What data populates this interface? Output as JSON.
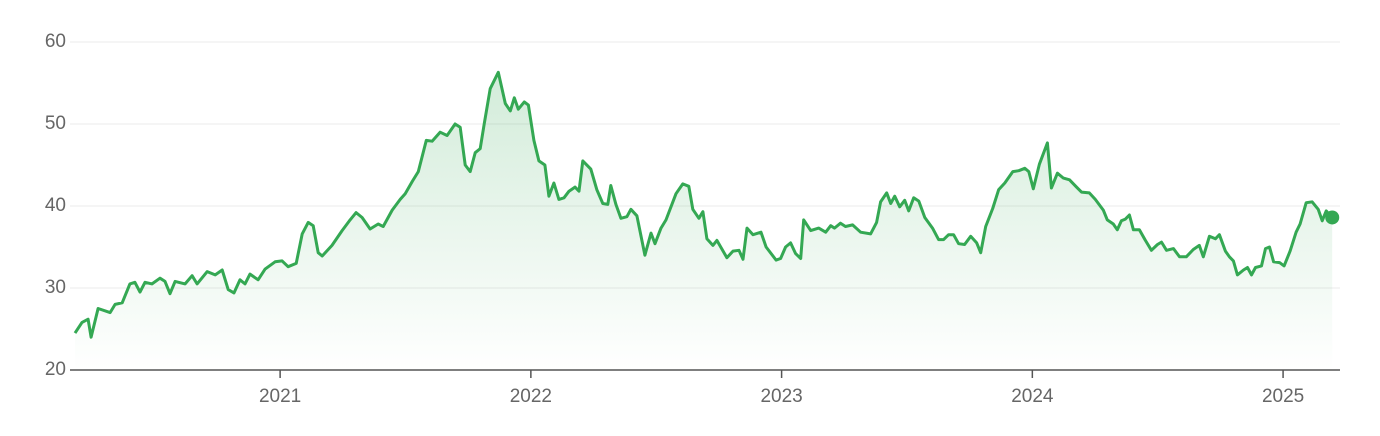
{
  "chart_data": {
    "type": "line",
    "color": "#34a853",
    "grid": true,
    "area": true,
    "last_point_marker": true,
    "xlim": [
      2020.162,
      2025.227
    ],
    "xticks": [
      2021,
      2022,
      2023,
      2024,
      2025
    ],
    "ylim": [
      20,
      60
    ],
    "yticks": [
      20,
      30,
      40,
      50,
      60
    ],
    "x": [
      2020.182,
      2020.21,
      2020.234,
      2020.246,
      2020.274,
      2020.322,
      2020.342,
      2020.37,
      2020.401,
      2020.421,
      2020.441,
      2020.461,
      2020.489,
      2020.521,
      2020.541,
      2020.561,
      2020.581,
      2020.621,
      2020.649,
      2020.669,
      2020.709,
      2020.741,
      2020.769,
      2020.793,
      2020.816,
      2020.84,
      2020.86,
      2020.88,
      2020.912,
      2020.94,
      2020.98,
      2021.008,
      2021.032,
      2021.064,
      2021.088,
      2021.112,
      2021.132,
      2021.152,
      2021.168,
      2021.207,
      2021.247,
      2021.279,
      2021.303,
      2021.327,
      2021.359,
      2021.391,
      2021.411,
      2021.447,
      2021.479,
      2021.499,
      2021.527,
      2021.551,
      2021.583,
      2021.606,
      2021.638,
      2021.666,
      2021.698,
      2021.718,
      2021.738,
      2021.758,
      2021.778,
      2021.798,
      2021.814,
      2021.838,
      2021.87,
      2021.898,
      2021.918,
      2021.934,
      2021.95,
      2021.974,
      2021.99,
      2022.012,
      2022.032,
      2022.056,
      2022.072,
      2022.092,
      2022.112,
      2022.132,
      2022.152,
      2022.176,
      2022.192,
      2022.207,
      2022.239,
      2022.263,
      2022.287,
      2022.307,
      2022.319,
      2022.339,
      2022.359,
      2022.383,
      2022.399,
      2022.423,
      2022.455,
      2022.479,
      2022.495,
      2022.519,
      2022.539,
      2022.579,
      2022.606,
      2022.63,
      2022.646,
      2022.67,
      2022.686,
      2022.702,
      2022.726,
      2022.742,
      2022.782,
      2022.806,
      2022.83,
      2022.846,
      2022.862,
      2022.886,
      2022.918,
      2022.938,
      2022.978,
      2022.996,
      2023.016,
      2023.036,
      2023.056,
      2023.076,
      2023.088,
      2023.116,
      2023.148,
      2023.176,
      2023.196,
      2023.211,
      2023.235,
      2023.255,
      2023.283,
      2023.315,
      2023.355,
      2023.379,
      2023.395,
      2023.419,
      2023.435,
      2023.451,
      2023.471,
      2023.491,
      2023.507,
      2023.527,
      2023.547,
      2023.571,
      2023.602,
      2023.626,
      2023.646,
      2023.666,
      2023.686,
      2023.706,
      2023.73,
      2023.754,
      2023.778,
      2023.794,
      2023.814,
      2023.842,
      2023.866,
      2023.89,
      2023.922,
      2023.946,
      2023.97,
      2023.986,
      2024.004,
      2024.028,
      2024.06,
      2024.076,
      2024.1,
      2024.124,
      2024.148,
      2024.176,
      2024.196,
      2024.227,
      2024.251,
      2024.283,
      2024.299,
      2024.323,
      2024.339,
      2024.355,
      2024.371,
      2024.387,
      2024.403,
      2024.427,
      2024.451,
      2024.475,
      2024.499,
      2024.515,
      2024.535,
      2024.563,
      2024.587,
      2024.614,
      2024.642,
      2024.666,
      2024.682,
      2024.706,
      2024.73,
      2024.746,
      2024.77,
      2024.786,
      2024.802,
      2024.818,
      2024.842,
      2024.858,
      2024.874,
      2024.89,
      2024.914,
      2024.93,
      2024.946,
      2024.962,
      2024.986,
      2025.004,
      2025.028,
      2025.052,
      2025.068,
      2025.092,
      2025.116,
      2025.14,
      2025.156,
      2025.172,
      2025.196
    ],
    "values": [
      24.5,
      25.8,
      26.2,
      24,
      27.5,
      27,
      28,
      28.2,
      30.5,
      30.7,
      29.5,
      30.7,
      30.5,
      31.2,
      30.8,
      29.3,
      30.8,
      30.5,
      31.5,
      30.5,
      32,
      31.6,
      32.2,
      29.8,
      29.4,
      31,
      30.5,
      31.7,
      31,
      32.3,
      33.2,
      33.3,
      32.6,
      33,
      36.6,
      38,
      37.6,
      34.3,
      33.9,
      35.2,
      37,
      38.3,
      39.2,
      38.6,
      37.2,
      37.8,
      37.5,
      39.5,
      40.8,
      41.5,
      43,
      44.2,
      48,
      47.9,
      49,
      48.6,
      50,
      49.6,
      45,
      44.2,
      46.5,
      47,
      50,
      54.3,
      56.3,
      52.5,
      51.6,
      53.2,
      51.8,
      52.7,
      52.3,
      48,
      45.5,
      45,
      41.2,
      42.8,
      40.8,
      41,
      41.8,
      42.3,
      41.8,
      45.5,
      44.5,
      42,
      40.3,
      40.2,
      42.5,
      40.2,
      38.5,
      38.7,
      39.6,
      38.8,
      34,
      36.7,
      35.4,
      37.3,
      38.3,
      41.5,
      42.7,
      42.4,
      39.6,
      38.5,
      39.3,
      36,
      35.2,
      35.8,
      33.7,
      34.5,
      34.6,
      33.5,
      37.3,
      36.5,
      36.8,
      35,
      33.4,
      33.6,
      35,
      35.5,
      34.2,
      33.6,
      38.3,
      37,
      37.3,
      36.8,
      37.6,
      37.3,
      37.9,
      37.5,
      37.7,
      36.8,
      36.6,
      38,
      40.5,
      41.6,
      40.3,
      41.2,
      39.9,
      40.7,
      39.4,
      41,
      40.6,
      38.6,
      37.3,
      35.9,
      35.9,
      36.5,
      36.5,
      35.4,
      35.3,
      36.3,
      35.5,
      34.3,
      37.5,
      39.7,
      42,
      42.8,
      44.2,
      44.3,
      44.6,
      44.2,
      42.1,
      45.1,
      47.7,
      42.2,
      44,
      43.4,
      43.2,
      42.3,
      41.7,
      41.6,
      40.8,
      39.5,
      38.3,
      37.8,
      37.1,
      38.2,
      38.4,
      38.9,
      37.1,
      37.1,
      35.8,
      34.6,
      35.3,
      35.6,
      34.6,
      34.8,
      33.8,
      33.8,
      34.7,
      35.2,
      33.8,
      36.3,
      36,
      36.5,
      34.5,
      33.8,
      33.3,
      31.6,
      32.2,
      32.5,
      31.6,
      32.5,
      32.7,
      34.8,
      35,
      33.2,
      33.1,
      32.7,
      34.5,
      36.8,
      37.8,
      40.4,
      40.5,
      39.6,
      38.2,
      39.4,
      38.6
    ]
  }
}
